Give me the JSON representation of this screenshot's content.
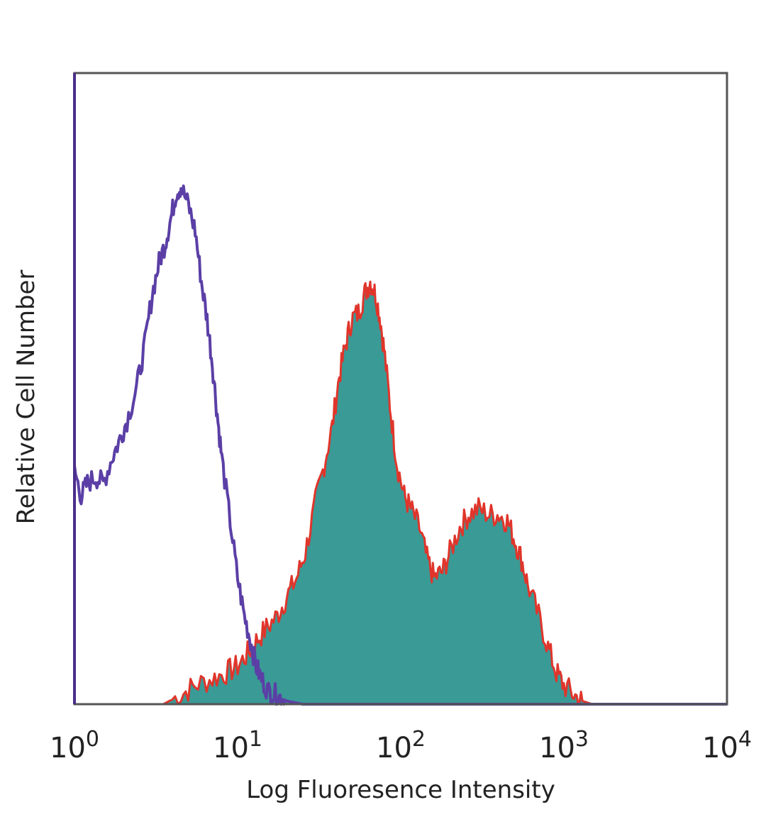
{
  "chart_data": {
    "type": "area",
    "xlabel": "Log Fluoresence Intensity",
    "ylabel": "Relative Cell Number",
    "x_scale": "log",
    "xlim": [
      1,
      10000
    ],
    "ylim": [
      0,
      100
    ],
    "grid": false,
    "x_ticks": [
      {
        "value": 1,
        "base": "10",
        "exp": "0"
      },
      {
        "value": 10,
        "base": "10",
        "exp": "1"
      },
      {
        "value": 100,
        "base": "10",
        "exp": "2"
      },
      {
        "value": 1000,
        "base": "10",
        "exp": "3"
      },
      {
        "value": 10000,
        "base": "10",
        "exp": "4"
      }
    ],
    "series": [
      {
        "style": "outline",
        "color": "#5b3fa6",
        "x": [
          1,
          1.1,
          1.2,
          1.35,
          1.5,
          1.7,
          1.9,
          2.1,
          2.4,
          2.7,
          3.0,
          3.3,
          3.6,
          3.9,
          4.2,
          4.5,
          5.0,
          5.5,
          6.0,
          6.5,
          7.0,
          7.5,
          8.0,
          9.0,
          10.0,
          11.0,
          12.0,
          13.0,
          14.0,
          15.5,
          17.0,
          18.5,
          20.0,
          25.0,
          10000
        ],
        "y": [
          37,
          33,
          35,
          36,
          35,
          39,
          42,
          45,
          50,
          57,
          65,
          70,
          73,
          77,
          81,
          82,
          79,
          75,
          67,
          61,
          54,
          46,
          39,
          29,
          20,
          14,
          10,
          6,
          4,
          2,
          1.5,
          1,
          0.5,
          0,
          0
        ]
      },
      {
        "style": "filled",
        "color": "#3a9a96",
        "line_color": "#e0352b",
        "x": [
          1,
          3.5,
          4.5,
          5.5,
          7,
          8.5,
          10,
          11.5,
          13,
          15,
          17.5,
          20,
          23,
          26,
          30,
          34,
          38,
          42,
          46,
          50,
          55,
          60,
          65,
          70,
          75,
          80,
          87,
          95,
          105,
          115,
          130,
          145,
          160,
          180,
          200,
          230,
          260,
          300,
          350,
          400,
          450,
          500,
          550,
          600,
          700,
          800,
          900,
          1000,
          1150,
          1300,
          1500,
          10000
        ],
        "y": [
          0,
          0,
          1.5,
          3,
          4,
          5,
          6,
          8,
          10,
          12,
          14,
          17,
          20,
          24,
          32,
          38,
          44,
          52,
          57,
          61,
          62,
          65,
          67,
          65,
          61,
          55,
          46,
          38,
          33,
          31,
          28,
          23,
          20,
          21,
          24,
          28,
          30,
          31,
          30,
          30,
          29,
          26,
          23,
          19,
          14,
          9,
          5,
          3,
          1.5,
          0.5,
          0,
          0
        ]
      }
    ]
  }
}
